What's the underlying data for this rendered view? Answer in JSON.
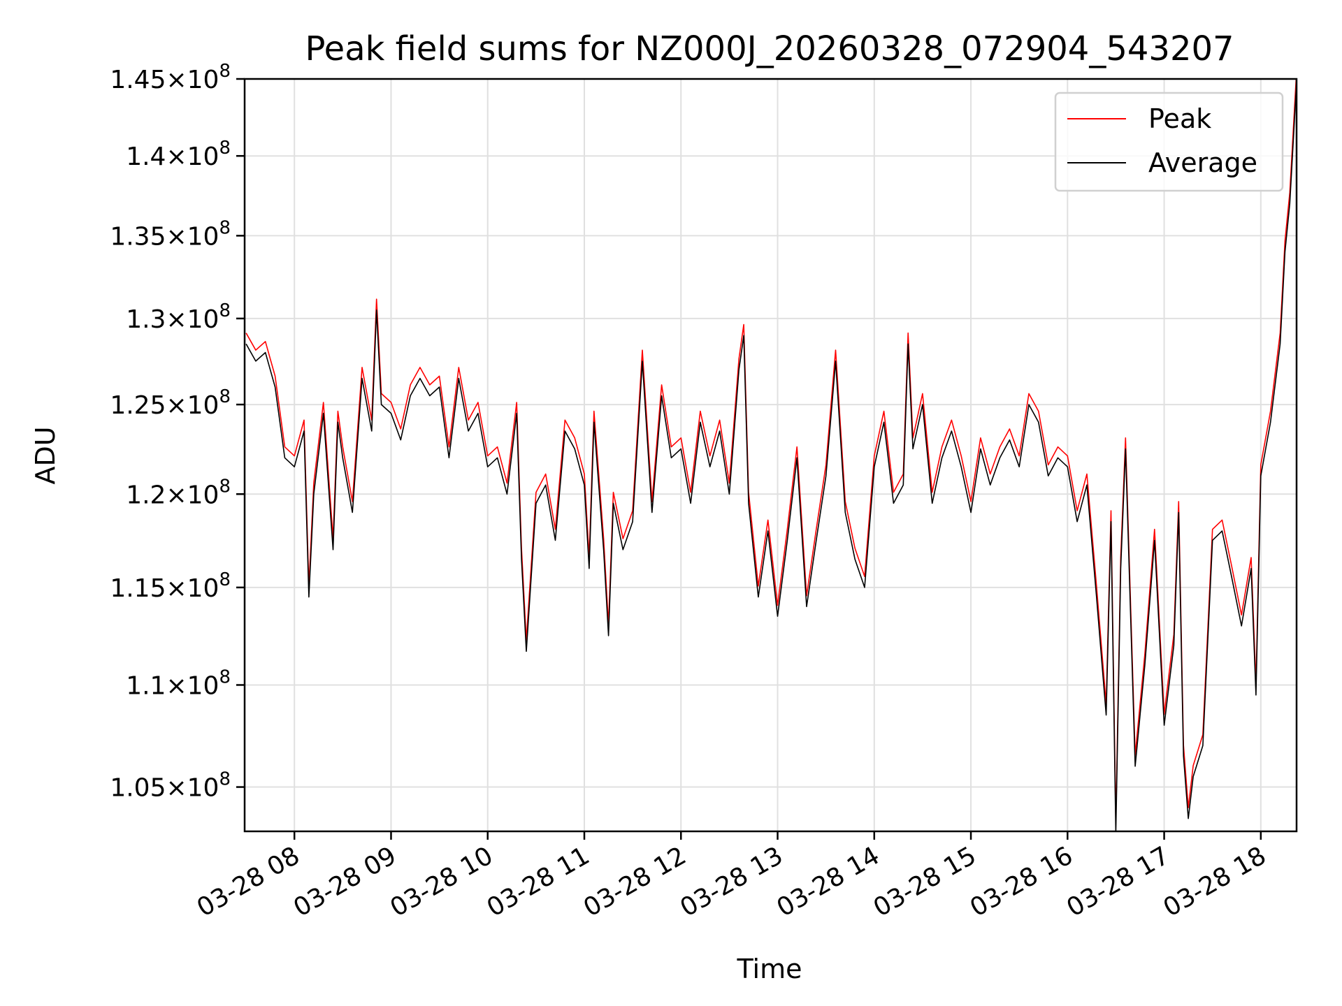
{
  "chart_data": {
    "type": "line",
    "title": "Peak field sums for NZ000J_20260328_072904_543207",
    "xlabel": "Time",
    "ylabel": "ADU",
    "yscale": "log",
    "grid": true,
    "legend_position": "top-right",
    "xlim_hours": [
      7.485,
      18.37
    ],
    "ylim": [
      102900000,
      145000000
    ],
    "x_ticks": [
      {
        "hour": 8,
        "label": "03-28 08"
      },
      {
        "hour": 9,
        "label": "03-28 09"
      },
      {
        "hour": 10,
        "label": "03-28 10"
      },
      {
        "hour": 11,
        "label": "03-28 11"
      },
      {
        "hour": 12,
        "label": "03-28 12"
      },
      {
        "hour": 13,
        "label": "03-28 13"
      },
      {
        "hour": 14,
        "label": "03-28 14"
      },
      {
        "hour": 15,
        "label": "03-28 15"
      },
      {
        "hour": 16,
        "label": "03-28 16"
      },
      {
        "hour": 17,
        "label": "03-28 17"
      },
      {
        "hour": 18,
        "label": "03-28 18"
      }
    ],
    "y_ticks": [
      {
        "value": 105000000,
        "mantissa": "1.05",
        "exponent": "8"
      },
      {
        "value": 110000000,
        "mantissa": "1.1",
        "exponent": "8"
      },
      {
        "value": 115000000,
        "mantissa": "1.15",
        "exponent": "8"
      },
      {
        "value": 120000000,
        "mantissa": "1.2",
        "exponent": "8"
      },
      {
        "value": 125000000,
        "mantissa": "1.25",
        "exponent": "8"
      },
      {
        "value": 130000000,
        "mantissa": "1.3",
        "exponent": "8"
      },
      {
        "value": 135000000,
        "mantissa": "1.35",
        "exponent": "8"
      },
      {
        "value": 140000000,
        "mantissa": "1.4",
        "exponent": "8"
      },
      {
        "value": 145000000,
        "mantissa": "1.45",
        "exponent": "8"
      }
    ],
    "series": [
      {
        "name": "Peak",
        "color": "#ff0000",
        "offset_fraction": 0.005
      },
      {
        "name": "Average",
        "color": "#000000",
        "offset_fraction": 0
      }
    ],
    "x_hours": [
      7.5,
      7.6,
      7.7,
      7.8,
      7.9,
      8.0,
      8.1,
      8.15,
      8.2,
      8.3,
      8.4,
      8.45,
      8.5,
      8.6,
      8.7,
      8.8,
      8.85,
      8.9,
      9.0,
      9.1,
      9.2,
      9.3,
      9.4,
      9.5,
      9.6,
      9.7,
      9.8,
      9.9,
      10.0,
      10.1,
      10.2,
      10.3,
      10.35,
      10.4,
      10.5,
      10.6,
      10.7,
      10.8,
      10.9,
      11.0,
      11.05,
      11.1,
      11.2,
      11.25,
      11.3,
      11.4,
      11.5,
      11.6,
      11.7,
      11.8,
      11.9,
      12.0,
      12.1,
      12.2,
      12.3,
      12.4,
      12.5,
      12.6,
      12.65,
      12.7,
      12.8,
      12.9,
      13.0,
      13.1,
      13.2,
      13.3,
      13.4,
      13.5,
      13.6,
      13.7,
      13.8,
      13.9,
      14.0,
      14.1,
      14.2,
      14.3,
      14.35,
      14.4,
      14.5,
      14.6,
      14.7,
      14.8,
      14.9,
      15.0,
      15.1,
      15.2,
      15.3,
      15.4,
      15.5,
      15.6,
      15.7,
      15.8,
      15.9,
      16.0,
      16.1,
      16.2,
      16.3,
      16.4,
      16.45,
      16.5,
      16.55,
      16.6,
      16.7,
      16.8,
      16.9,
      17.0,
      17.05,
      17.1,
      17.15,
      17.2,
      17.25,
      17.3,
      17.4,
      17.5,
      17.6,
      17.7,
      17.8,
      17.9,
      17.95,
      18.0,
      18.1,
      18.2,
      18.25,
      18.3,
      18.37
    ],
    "average_values": [
      128500000,
      127500000,
      128000000,
      126000000,
      122000000,
      121500000,
      123500000,
      114500000,
      120000000,
      124500000,
      117000000,
      124000000,
      122000000,
      119000000,
      126500000,
      123500000,
      130500000,
      125000000,
      124500000,
      123000000,
      125500000,
      126500000,
      125500000,
      126000000,
      122000000,
      126500000,
      123500000,
      124500000,
      121500000,
      122000000,
      120000000,
      124500000,
      116500000,
      111700000,
      119500000,
      120500000,
      117500000,
      123500000,
      122500000,
      120500000,
      116000000,
      124000000,
      117000000,
      112500000,
      119500000,
      117000000,
      118500000,
      127500000,
      119000000,
      125500000,
      122000000,
      122500000,
      119500000,
      124000000,
      121500000,
      123500000,
      120000000,
      127000000,
      129000000,
      119500000,
      114500000,
      118000000,
      113500000,
      117500000,
      122000000,
      114000000,
      117500000,
      121000000,
      127500000,
      119000000,
      116500000,
      115000000,
      121500000,
      124000000,
      119500000,
      120500000,
      128500000,
      122500000,
      125000000,
      119500000,
      122000000,
      123500000,
      121500000,
      119000000,
      122500000,
      120500000,
      122000000,
      123000000,
      121500000,
      125000000,
      124000000,
      121000000,
      122000000,
      121500000,
      118500000,
      120500000,
      114500000,
      108500000,
      118500000,
      102800000,
      116000000,
      122500000,
      106000000,
      111000000,
      117500000,
      108000000,
      110000000,
      112000000,
      119000000,
      106500000,
      103500000,
      105500000,
      107000000,
      117500000,
      118000000,
      115500000,
      113000000,
      116000000,
      109500000,
      121000000,
      124000000,
      128500000,
      134000000,
      137000000,
      144800000
    ]
  },
  "legend": {
    "entries": [
      {
        "label": "Peak",
        "color": "#ff0000"
      },
      {
        "label": "Average",
        "color": "#000000"
      }
    ]
  },
  "colors": {
    "grid": "#e0e0e0",
    "axes": "#000000",
    "legend_border": "#d0d0d0",
    "background": "#ffffff"
  }
}
